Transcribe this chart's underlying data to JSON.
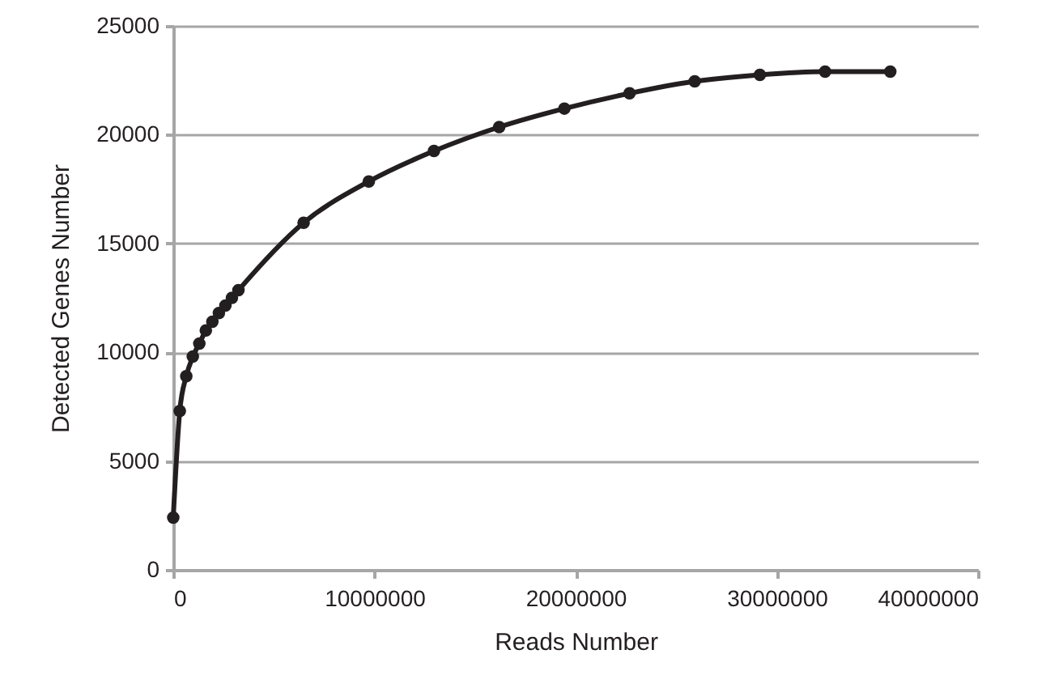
{
  "chart_data": {
    "type": "line",
    "xlabel": "Reads Number",
    "ylabel": "Detected Genes Number",
    "x": [
      0,
      324000,
      648000,
      972000,
      1296000,
      1620000,
      1944000,
      2268000,
      2592000,
      2916000,
      3240000,
      6480000,
      9720000,
      12960000,
      16200000,
      19440000,
      22680000,
      25920000,
      29160000,
      32400000,
      35640000
    ],
    "series": [
      {
        "color": "#231f20",
        "values": [
          2400,
          7300,
          8900,
          9800,
          10400,
          11000,
          11400,
          11800,
          12150,
          12500,
          12850,
          15950,
          17850,
          19250,
          20350,
          21200,
          21900,
          22450,
          22750,
          22900,
          22900
        ]
      }
    ],
    "xlim": [
      0,
      40000000
    ],
    "xticks": [
      0,
      10000000,
      20000000,
      30000000,
      40000000
    ],
    "ylim": [
      0,
      25000
    ],
    "yticks": [
      0,
      5000,
      10000,
      15000,
      20000,
      25000
    ],
    "grid": "y",
    "marker": "circle",
    "line_style": "solid"
  }
}
